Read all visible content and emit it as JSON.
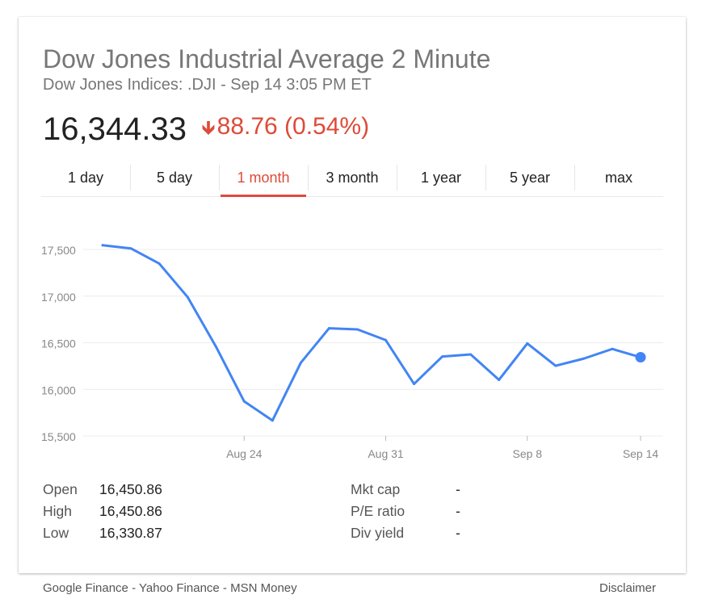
{
  "header": {
    "title": "Dow Jones Industrial Average 2 Minute",
    "subtitle": "Dow Jones Indices: .DJI - Sep 14 3:05 PM ET",
    "price": "16,344.33",
    "change": "88.76 (0.54%)",
    "change_direction": "down",
    "change_color": "#dd4b39"
  },
  "tabs": [
    {
      "label": "1 day"
    },
    {
      "label": "5 day"
    },
    {
      "label": "1 month",
      "active": true
    },
    {
      "label": "3 month"
    },
    {
      "label": "1 year"
    },
    {
      "label": "5 year"
    },
    {
      "label": "max"
    }
  ],
  "chart_data": {
    "type": "line",
    "line_color": "#4285f4",
    "grid": true,
    "ylim": [
      15500,
      17700
    ],
    "y_ticks": [
      15500,
      16000,
      16500,
      17000,
      17500
    ],
    "y_tick_labels": [
      "15,500",
      "16,000",
      "16,500",
      "17,000",
      "17,500"
    ],
    "x_ticks": [
      {
        "label": "Aug 24",
        "index": 6
      },
      {
        "label": "Aug 31",
        "index": 11
      },
      {
        "label": "Sep 8",
        "index": 16
      },
      {
        "label": "Sep 14",
        "index": 20
      }
    ],
    "series": [
      {
        "values": [
          17545,
          17511,
          17349,
          16991,
          16460,
          15871,
          15666,
          16285,
          16655,
          16643,
          16528,
          16058,
          16352,
          16374,
          16102,
          16492,
          16253,
          16330,
          16433,
          16344
        ]
      }
    ],
    "point_index_offset": 1
  },
  "stats": {
    "left": [
      {
        "label": "Open",
        "value": "16,450.86"
      },
      {
        "label": "High",
        "value": "16,450.86"
      },
      {
        "label": "Low",
        "value": "16,330.87"
      }
    ],
    "right": [
      {
        "label": "Mkt cap",
        "value": "-"
      },
      {
        "label": "P/E ratio",
        "value": "-"
      },
      {
        "label": "Div yield",
        "value": "-"
      }
    ]
  },
  "footer": {
    "sources": [
      "Google Finance",
      "Yahoo Finance",
      "MSN Money"
    ],
    "separator": " - ",
    "disclaimer": "Disclaimer"
  }
}
